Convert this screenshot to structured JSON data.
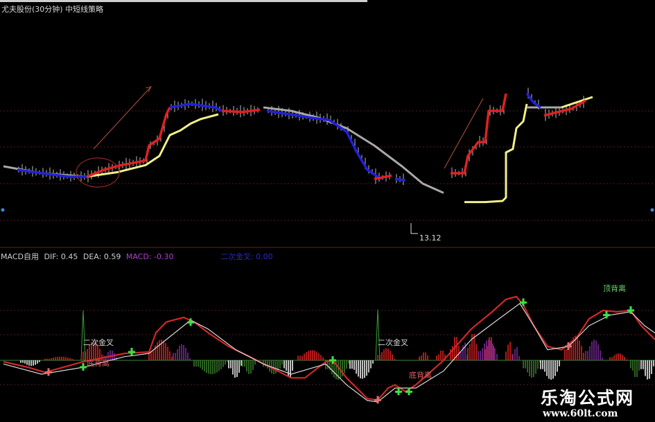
{
  "header": {
    "title": "尤夫股份(30分钟) 中短线策略"
  },
  "macd_header": {
    "name": "MACD自用",
    "dif": "DIF: 0.45",
    "dea": "DEA: 0.59",
    "macd": "MACD: -0.30",
    "second_cross": "二次金叉: 0.00"
  },
  "watermark": {
    "name": "乐淘公式网",
    "url": "www.60lt.com"
  },
  "colors": {
    "bg": "#000000",
    "red": "#e02020",
    "blue": "#2020d8",
    "yellow": "#f4f088",
    "grey": "#a8a8a8",
    "green": "#40d040",
    "purple": "#7a2a9a",
    "grid": "#5a1a1a"
  },
  "chart_data": [
    {
      "type": "line",
      "title": "尤夫股份(30分钟) 中短线策略",
      "x_unit": "bar index",
      "low_marker": {
        "bar": 119,
        "label": "13.12"
      },
      "slow_line": [
        {
          "color": "grey",
          "points": [
            [
              1,
              14.2
            ],
            [
              12,
              14.08
            ],
            [
              25,
              14.02
            ]
          ]
        },
        {
          "color": "yellow",
          "points": [
            [
              25,
              14.02
            ],
            [
              34,
              14.1
            ],
            [
              42,
              14.22
            ],
            [
              46,
              14.38
            ],
            [
              48,
              14.62
            ],
            [
              49,
              14.74
            ],
            [
              52,
              14.82
            ],
            [
              55,
              14.94
            ],
            [
              58,
              15.02
            ],
            [
              63,
              15.1
            ]
          ]
        },
        {
          "color": "grey",
          "points": [
            [
              76,
              15.22
            ],
            [
              84,
              15.16
            ],
            [
              92,
              15.04
            ],
            [
              100,
              14.86
            ],
            [
              108,
              14.56
            ],
            [
              116,
              14.2
            ],
            [
              122,
              13.9
            ],
            [
              128,
              13.74
            ]
          ]
        },
        {
          "color": "yellow",
          "points": [
            [
              134,
              13.58
            ],
            [
              140,
              13.58
            ],
            [
              145,
              13.6
            ],
            [
              146,
              13.66
            ],
            [
              146,
              14.44
            ],
            [
              148,
              14.5
            ],
            [
              149,
              14.86
            ],
            [
              151,
              14.98
            ],
            [
              152,
              15.28
            ]
          ]
        },
        {
          "color": "grey",
          "points": [
            [
              152,
              15.22
            ],
            [
              162,
              15.22
            ]
          ]
        },
        {
          "color": "yellow",
          "points": [
            [
              162,
              15.22
            ],
            [
              166,
              15.3
            ],
            [
              171,
              15.4
            ]
          ]
        }
      ],
      "fast_line": [
        {
          "color": "blue",
          "points": [
            [
              5,
              14.14
            ],
            [
              12,
              14.08
            ],
            [
              20,
              14.02
            ],
            [
              25,
              14.02
            ]
          ]
        },
        {
          "color": "red",
          "points": [
            [
              25,
              14.02
            ],
            [
              30,
              14.14
            ],
            [
              35,
              14.22
            ],
            [
              42,
              14.3
            ],
            [
              43,
              14.56
            ],
            [
              46,
              14.68
            ],
            [
              48,
              15.1
            ],
            [
              49,
              15.22
            ]
          ]
        },
        {
          "color": "blue",
          "points": [
            [
              49,
              15.22
            ],
            [
              55,
              15.28
            ],
            [
              62,
              15.22
            ],
            [
              64,
              15.16
            ]
          ]
        },
        {
          "color": "red",
          "points": [
            [
              64,
              15.16
            ],
            [
              70,
              15.14
            ],
            [
              75,
              15.18
            ]
          ]
        },
        {
          "color": "blue",
          "points": [
            [
              77,
              15.16
            ],
            [
              90,
              15.04
            ],
            [
              95,
              15.0
            ],
            [
              100,
              14.8
            ],
            [
              103,
              14.44
            ],
            [
              106,
              14.14
            ],
            [
              110,
              13.98
            ]
          ]
        },
        {
          "color": "red",
          "points": [
            [
              108,
              13.98
            ],
            [
              113,
              14.04
            ]
          ]
        },
        {
          "color": "blue",
          "points": [
            [
              114,
              13.98
            ],
            [
              117,
              13.96
            ]
          ]
        },
        {
          "color": "red",
          "points": [
            [
              130,
              14.08
            ],
            [
              134,
              14.08
            ],
            [
              135,
              14.38
            ],
            [
              138,
              14.62
            ],
            [
              140,
              14.62
            ],
            [
              141,
              15.16
            ],
            [
              145,
              15.16
            ],
            [
              146,
              15.46
            ]
          ]
        },
        {
          "color": "blue",
          "points": [
            [
              152,
              15.46
            ],
            [
              154,
              15.3
            ],
            [
              156,
              15.22
            ]
          ]
        },
        {
          "color": "red",
          "points": [
            [
              157,
              15.08
            ],
            [
              165,
              15.2
            ],
            [
              169,
              15.34
            ]
          ]
        }
      ]
    },
    {
      "type": "line",
      "title": "MACD自用",
      "x_unit": "bar index",
      "series": [
        {
          "name": "DIF",
          "color": "red",
          "points": [
            [
              1,
              -0.03
            ],
            [
              8,
              -0.15
            ],
            [
              13,
              -0.26
            ],
            [
              24,
              -0.03
            ],
            [
              36,
              0.15
            ],
            [
              43,
              0.18
            ],
            [
              45,
              0.6
            ],
            [
              48,
              0.83
            ],
            [
              53,
              0.93
            ],
            [
              56,
              0.83
            ],
            [
              60,
              0.6
            ],
            [
              66,
              0.3
            ],
            [
              72,
              0.08
            ],
            [
              78,
              -0.15
            ],
            [
              84,
              -0.38
            ],
            [
              88,
              -0.38
            ],
            [
              94,
              -0.03
            ],
            [
              96,
              0
            ],
            [
              100,
              -0.38
            ],
            [
              106,
              -0.83
            ],
            [
              109,
              -0.86
            ],
            [
              112,
              -0.6
            ],
            [
              114,
              -0.53
            ],
            [
              117,
              -0.68
            ],
            [
              120,
              -0.53
            ],
            [
              128,
              0
            ],
            [
              136,
              0.68
            ],
            [
              142,
              1.05
            ],
            [
              146,
              1.32
            ],
            [
              149,
              1.38
            ],
            [
              151,
              1.2
            ],
            [
              154,
              0.75
            ],
            [
              158,
              0.3
            ],
            [
              162,
              0.23
            ],
            [
              166,
              0.45
            ],
            [
              170,
              0.9
            ],
            [
              174,
              1.08
            ],
            [
              178,
              1.05
            ],
            [
              182,
              1.08
            ],
            [
              185,
              0.75
            ],
            [
              189,
              0.45
            ]
          ]
        },
        {
          "name": "DEA",
          "color": "white",
          "points": [
            [
              1,
              -0.08
            ],
            [
              12,
              -0.3
            ],
            [
              24,
              -0.15
            ],
            [
              36,
              0.08
            ],
            [
              43,
              0.15
            ],
            [
              48,
              0.45
            ],
            [
              55,
              0.87
            ],
            [
              60,
              0.68
            ],
            [
              68,
              0.23
            ],
            [
              76,
              -0.08
            ],
            [
              84,
              -0.3
            ],
            [
              94,
              -0.08
            ],
            [
              100,
              -0.53
            ],
            [
              106,
              -0.87
            ],
            [
              109,
              -0.9
            ],
            [
              114,
              -0.6
            ],
            [
              120,
              -0.6
            ],
            [
              128,
              -0.23
            ],
            [
              136,
              0.45
            ],
            [
              144,
              0.9
            ],
            [
              150,
              1.23
            ],
            [
              154,
              0.75
            ],
            [
              158,
              0.23
            ],
            [
              164,
              0.3
            ],
            [
              170,
              0.75
            ],
            [
              176,
              0.98
            ],
            [
              182,
              1.05
            ],
            [
              186,
              0.75
            ],
            [
              189,
              0.59
            ]
          ]
        }
      ],
      "histogram": [
        {
          "from": 6,
          "to": 12,
          "peak": -0.12,
          "color": "white"
        },
        {
          "from": 13,
          "to": 22,
          "peak": 0.08,
          "color": "red"
        },
        {
          "from": 24,
          "to": 30,
          "peak": 0.42,
          "color": "red"
        },
        {
          "from": 30,
          "to": 34,
          "peak": 0.22,
          "color": "purple"
        },
        {
          "from": 43,
          "to": 50,
          "peak": 0.45,
          "color": "red"
        },
        {
          "from": 50,
          "to": 55,
          "peak": 0.35,
          "color": "purple"
        },
        {
          "from": 56,
          "to": 66,
          "peak": -0.3,
          "color": "green"
        },
        {
          "from": 66,
          "to": 70,
          "peak": -0.38,
          "color": "white"
        },
        {
          "from": 70,
          "to": 74,
          "peak": -0.3,
          "color": "green"
        },
        {
          "from": 76,
          "to": 82,
          "peak": -0.3,
          "color": "green"
        },
        {
          "from": 82,
          "to": 85,
          "peak": -0.38,
          "color": "white"
        },
        {
          "from": 86,
          "to": 94,
          "peak": 0.22,
          "color": "red"
        },
        {
          "from": 94,
          "to": 101,
          "peak": -0.42,
          "color": "green"
        },
        {
          "from": 101,
          "to": 108,
          "peak": -0.4,
          "color": "white"
        },
        {
          "from": 109,
          "to": 114,
          "peak": 0.26,
          "color": "red"
        },
        {
          "from": 121,
          "to": 124,
          "peak": 0.18,
          "color": "red"
        },
        {
          "from": 126,
          "to": 129,
          "peak": 0.22,
          "color": "red"
        },
        {
          "from": 130,
          "to": 133,
          "peak": 0.53,
          "color": "red"
        },
        {
          "from": 133,
          "to": 135,
          "peak": 0.4,
          "color": "purple"
        },
        {
          "from": 135,
          "to": 138,
          "peak": 0.6,
          "color": "red"
        },
        {
          "from": 138,
          "to": 144,
          "peak": 0.45,
          "color": "purple"
        },
        {
          "from": 140,
          "to": 143,
          "peak": 0.53,
          "color": "red"
        },
        {
          "from": 146,
          "to": 148,
          "peak": 0.42,
          "color": "red"
        },
        {
          "from": 148,
          "to": 150,
          "peak": 0.3,
          "color": "purple"
        },
        {
          "from": 151,
          "to": 156,
          "peak": -0.38,
          "color": "green"
        },
        {
          "from": 156,
          "to": 162,
          "peak": -0.42,
          "color": "white"
        },
        {
          "from": 163,
          "to": 169,
          "peak": 0.53,
          "color": "red"
        },
        {
          "from": 169,
          "to": 174,
          "peak": 0.45,
          "color": "purple"
        },
        {
          "from": 176,
          "to": 181,
          "peak": 0.15,
          "color": "red"
        },
        {
          "from": 182,
          "to": 185,
          "peak": -0.38,
          "color": "green"
        },
        {
          "from": 185,
          "to": 189,
          "peak": -0.42,
          "color": "white"
        }
      ],
      "cross_markers": [
        {
          "bar": 24,
          "value": -0.15,
          "type": "golden"
        },
        {
          "bar": 38,
          "value": 0.18,
          "type": "golden"
        },
        {
          "bar": 55,
          "value": 0.82,
          "type": "golden"
        },
        {
          "bar": 96,
          "value": 0,
          "type": "golden"
        },
        {
          "bar": 115,
          "value": -0.68,
          "type": "golden"
        },
        {
          "bar": 118,
          "value": -0.68,
          "type": "golden"
        },
        {
          "bar": 151,
          "value": 1.25,
          "type": "golden"
        },
        {
          "bar": 175,
          "value": 0.98,
          "type": "golden"
        },
        {
          "bar": 182,
          "value": 1.08,
          "type": "golden"
        },
        {
          "bar": 14,
          "value": -0.26,
          "type": "death"
        },
        {
          "bar": 109,
          "value": -0.86,
          "type": "death"
        },
        {
          "bar": 164,
          "value": 0.3,
          "type": "death"
        }
      ],
      "spikes": [
        {
          "bar": 24,
          "value": 1.08
        },
        {
          "bar": 109,
          "value": 1.1
        }
      ],
      "annotations": [
        {
          "text": "二次金叉",
          "bar": 24,
          "value": 0.4,
          "color": "#d8d8d8"
        },
        {
          "text": "底背离",
          "bar": 25,
          "value": -0.05,
          "color": "#e06060"
        },
        {
          "text": "二次金叉",
          "bar": 109,
          "value": 0.4,
          "color": "#d8d8d8"
        },
        {
          "text": "底背离",
          "bar": 118,
          "value": -0.3,
          "color": "#e06060"
        },
        {
          "text": "顶背离",
          "bar": 174,
          "value": 1.58,
          "color": "#70d070"
        }
      ]
    }
  ]
}
